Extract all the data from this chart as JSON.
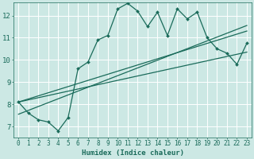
{
  "xlabel": "Humidex (Indice chaleur)",
  "bg_color": "#cce8e4",
  "line_color": "#1a6b5a",
  "grid_color": "#ffffff",
  "xlim": [
    -0.5,
    23.5
  ],
  "ylim": [
    6.5,
    12.6
  ],
  "yticks": [
    7,
    8,
    9,
    10,
    11,
    12
  ],
  "xticks": [
    0,
    1,
    2,
    3,
    4,
    5,
    6,
    7,
    8,
    9,
    10,
    11,
    12,
    13,
    14,
    15,
    16,
    17,
    18,
    19,
    20,
    21,
    22,
    23
  ],
  "series1_x": [
    0,
    1,
    2,
    3,
    4,
    5,
    6,
    7,
    8,
    9,
    10,
    11,
    12,
    13,
    14,
    15,
    16,
    17,
    18,
    19,
    20,
    21,
    22,
    23
  ],
  "series1_y": [
    8.1,
    7.6,
    7.3,
    7.2,
    6.8,
    7.4,
    9.6,
    9.9,
    10.9,
    11.1,
    12.3,
    12.55,
    12.2,
    11.5,
    12.15,
    11.1,
    12.3,
    11.85,
    12.15,
    11.0,
    10.5,
    10.3,
    9.8,
    10.75
  ],
  "series2_x": [
    0,
    23
  ],
  "series2_y": [
    8.1,
    11.3
  ],
  "series3_x": [
    0,
    23
  ],
  "series3_y": [
    7.55,
    11.55
  ],
  "series4_x": [
    0,
    23
  ],
  "series4_y": [
    8.1,
    10.35
  ]
}
